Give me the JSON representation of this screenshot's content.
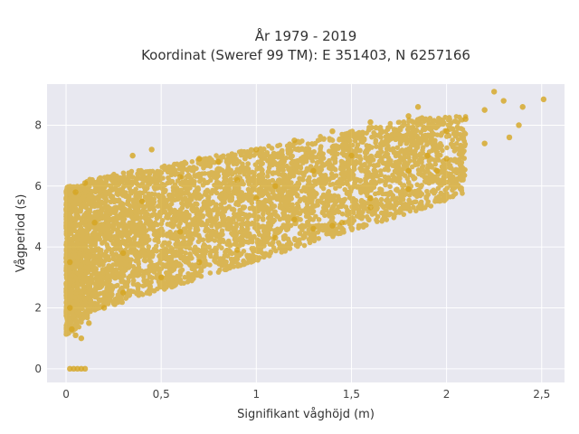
{
  "chart_data": {
    "type": "scatter",
    "title": "År 1979 - 2019",
    "subtitle": "Koordinat (Sweref 99 TM): E 351403, N 6257166",
    "xlabel": "Signifikant våghöjd (m)",
    "ylabel": "Vågperiod (s)",
    "xlim": [
      -0.1,
      2.62
    ],
    "ylim": [
      -0.45,
      9.35
    ],
    "x_ticks": [
      0,
      0.5,
      1,
      1.5,
      2,
      2.5
    ],
    "x_tick_labels": [
      "0",
      "0,5",
      "1",
      "1,5",
      "2",
      "2,5"
    ],
    "y_ticks": [
      0,
      2,
      4,
      6,
      8
    ],
    "y_tick_labels": [
      "0",
      "2",
      "4",
      "6",
      "8"
    ],
    "grid": true,
    "legend": "none",
    "marker_color": "#D4A520",
    "background_color": "#E8E8F0",
    "series": [
      {
        "description": "dense cloud, approximate outline of observed data",
        "points": [
          [
            0.03,
            1.3
          ],
          [
            0.05,
            1.1
          ],
          [
            0.08,
            1.0
          ],
          [
            0.12,
            1.5
          ],
          [
            0.2,
            2.0
          ],
          [
            0.3,
            2.5
          ],
          [
            0.5,
            3.0
          ],
          [
            0.7,
            3.5
          ],
          [
            0.9,
            3.9
          ],
          [
            1.1,
            4.3
          ],
          [
            1.3,
            4.6
          ],
          [
            1.45,
            4.8
          ],
          [
            1.6,
            5.6
          ],
          [
            1.8,
            6.5
          ],
          [
            1.9,
            7.0
          ],
          [
            2.0,
            7.8
          ],
          [
            2.1,
            8.2
          ],
          [
            2.2,
            8.5
          ],
          [
            2.25,
            9.1
          ],
          [
            2.3,
            8.8
          ],
          [
            2.4,
            8.6
          ],
          [
            2.51,
            8.85
          ],
          [
            2.33,
            7.6
          ],
          [
            2.38,
            8.0
          ],
          [
            2.2,
            7.4
          ],
          [
            2.0,
            6.9
          ],
          [
            1.95,
            6.5
          ],
          [
            1.8,
            5.9
          ],
          [
            1.6,
            5.3
          ],
          [
            1.4,
            4.7
          ],
          [
            1.2,
            4.9
          ],
          [
            1.0,
            5.6
          ],
          [
            0.9,
            6.2
          ],
          [
            0.7,
            6.9
          ],
          [
            0.45,
            7.2
          ],
          [
            0.35,
            7.0
          ],
          [
            0.1,
            6.1
          ],
          [
            0.05,
            5.8
          ],
          [
            0.02,
            3.5
          ],
          [
            0.02,
            2.0
          ],
          [
            0.02,
            0.0
          ],
          [
            0.04,
            0.0
          ],
          [
            0.06,
            0.0
          ],
          [
            0.08,
            0.0
          ],
          [
            0.1,
            0.0
          ],
          [
            0.15,
            4.8
          ],
          [
            0.4,
            5.5
          ],
          [
            0.6,
            6.3
          ],
          [
            0.8,
            6.8
          ],
          [
            1.0,
            7.2
          ],
          [
            1.2,
            7.5
          ],
          [
            1.4,
            7.8
          ],
          [
            1.6,
            8.1
          ],
          [
            1.8,
            8.3
          ],
          [
            1.85,
            8.6
          ],
          [
            0.6,
            4.5
          ],
          [
            1.1,
            6.0
          ],
          [
            1.5,
            7.0
          ],
          [
            0.3,
            3.8
          ],
          [
            1.3,
            6.5
          ]
        ]
      }
    ]
  }
}
